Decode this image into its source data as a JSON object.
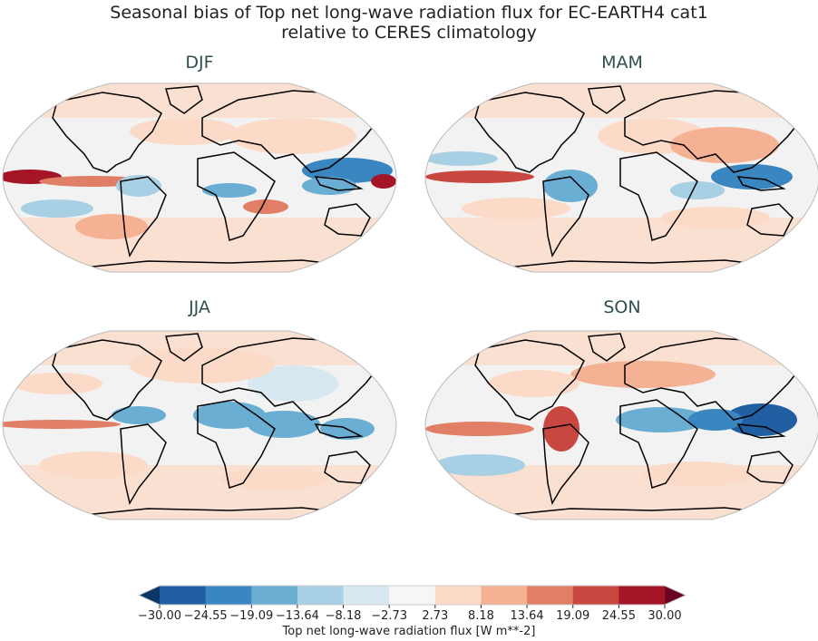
{
  "figure": {
    "title_line1": "Seasonal bias of Top net long-wave radiation flux for EC-EARTH4 cat1",
    "title_line2": "relative to CERES climatology"
  },
  "panels": [
    {
      "title": "DJF"
    },
    {
      "title": "MAM"
    },
    {
      "title": "JJA"
    },
    {
      "title": "SON"
    }
  ],
  "colorbar": {
    "label": "Top net long-wave radiation flux [W m**-2]",
    "ticks": [
      "−30.00",
      "−24.55",
      "−19.09",
      "−13.64",
      "−8.18",
      "−2.73",
      "2.73",
      "8.18",
      "13.64",
      "19.09",
      "24.55",
      "30.00"
    ],
    "colors": [
      "#1f5fa2",
      "#3a86c0",
      "#6aaed3",
      "#a8d0e5",
      "#d7e8f1",
      "#f6f6f6",
      "#fbdbc8",
      "#f4b194",
      "#e07f65",
      "#c94741",
      "#a51528"
    ],
    "under_color": "#0a3766",
    "over_color": "#6a0122",
    "extend": "both",
    "colormap": "RdBu_r"
  }
}
